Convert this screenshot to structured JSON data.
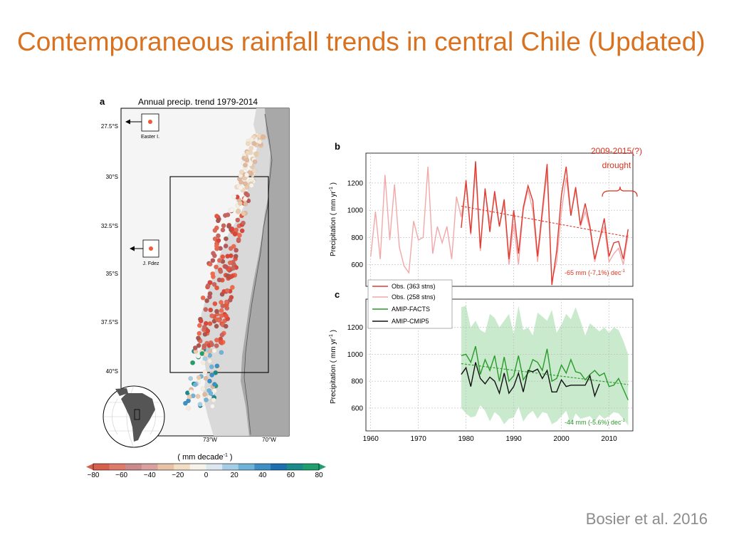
{
  "slide": {
    "title": "Contemporaneous rainfall trends in central Chile (Updated)",
    "credit": "Bosier et al. 2016"
  },
  "colors": {
    "title": "#d9711f",
    "obs363": "#e03a30",
    "obs258": "#f2a8a8",
    "facts": "#2a9a2a",
    "cmip5": "#111111",
    "spread": "#bfe6c4",
    "trend_b": "#e03a30",
    "trend_c": "#2a9a2a",
    "annot": "#d9331f",
    "land": "#d9d9d9",
    "andes": "#a8a8a8",
    "sea": "#f5f5f5"
  },
  "chart_data": [
    {
      "id": "a",
      "type": "scatter",
      "panel_letter": "a",
      "title": "Annual precip. trend 1979-2014",
      "ylabels": [
        "27.5°S",
        "30°S",
        "32.5°S",
        "35°S",
        "37.5°S",
        "40°S"
      ],
      "xlabels": [
        "73°W",
        "70°W"
      ],
      "insets": [
        "Easter I.",
        "J. Fdez"
      ],
      "colorbar": {
        "label": "( mm decade",
        "label_sup": "-1",
        "label_end": " )",
        "ticks": [
          "−80",
          "−60",
          "−40",
          "−20",
          "0",
          "20",
          "40",
          "60",
          "80"
        ],
        "range": [
          -80,
          80
        ],
        "colors": [
          "#d6604d",
          "#dd7a6a",
          "#c98a8a",
          "#d9a0a0",
          "#e8c2a4",
          "#f2dec6",
          "#f7f3ea",
          "#dce8f0",
          "#a7cde6",
          "#6fb3d8",
          "#3d8fc4",
          "#1e6fb0",
          "#1a8a8a",
          "#1f9e6e"
        ]
      }
    },
    {
      "id": "b",
      "type": "line",
      "panel_letter": "b",
      "ylabel": "Precipitation  ( mm yr",
      "ylabel_sup": "-1",
      "ylabel_end": " )",
      "yticks": [
        600,
        800,
        1000,
        1200
      ],
      "ylim": [
        440,
        1420
      ],
      "xlim": [
        1959,
        2015
      ],
      "annotation": [
        "2009-2015(?)",
        "drought"
      ],
      "trend_label": "-65 mm (-7,1%) dec",
      "trend_label_sup": "-1",
      "trend": {
        "x": [
          1979,
          2014
        ],
        "y": [
          1030,
          805
        ]
      },
      "series": [
        {
          "name": "Obs. (258 stns)",
          "x": [
            1960,
            1961,
            1962,
            1963,
            1964,
            1965,
            1966,
            1967,
            1968,
            1969,
            1970,
            1971,
            1972,
            1973,
            1974,
            1975,
            1976,
            1977,
            1978,
            1979,
            1980,
            1981,
            1982,
            1983,
            1984,
            1985,
            1986,
            1987,
            1988,
            1989,
            1990,
            1991,
            1992,
            1993,
            1994,
            1995,
            1996,
            1997,
            1998,
            1999,
            2000,
            2001,
            2002,
            2003,
            2004,
            2005,
            2006,
            2007,
            2008,
            2009,
            2010,
            2011,
            2012,
            2013,
            2014
          ],
          "y": [
            660,
            990,
            640,
            1260,
            780,
            1190,
            730,
            590,
            540,
            920,
            780,
            800,
            1320,
            680,
            880,
            760,
            880,
            640,
            1100,
            950,
            1180,
            820,
            1300,
            700,
            1150,
            900,
            1100,
            880,
            1050,
            600,
            900,
            600,
            1000,
            1150,
            1000,
            620,
            960,
            1280,
            480,
            620,
            990,
            1240,
            960,
            1150,
            880,
            990,
            860,
            620,
            780,
            880,
            620,
            680,
            720,
            600,
            820
          ]
        },
        {
          "name": "Obs. (363 stns)",
          "x": [
            1979,
            1980,
            1981,
            1982,
            1983,
            1984,
            1985,
            1986,
            1987,
            1988,
            1989,
            1990,
            1991,
            1992,
            1993,
            1994,
            1995,
            1996,
            1997,
            1998,
            1999,
            2000,
            2001,
            2002,
            2003,
            2004,
            2005,
            2006,
            2007,
            2008,
            2009,
            2010,
            2011,
            2012,
            2013,
            2014
          ],
          "y": [
            870,
            1220,
            830,
            1360,
            720,
            1160,
            840,
            1140,
            880,
            1080,
            640,
            1000,
            680,
            1020,
            1180,
            1070,
            660,
            1000,
            1340,
            450,
            700,
            1110,
            1320,
            960,
            1170,
            890,
            1050,
            880,
            640,
            780,
            940,
            660,
            760,
            770,
            640,
            860
          ]
        }
      ]
    },
    {
      "id": "c",
      "type": "line",
      "panel_letter": "c",
      "ylabel": "Precipitation  ( mm yr",
      "ylabel_sup": "-1",
      "ylabel_end": " )",
      "yticks": [
        600,
        800,
        1000,
        1200
      ],
      "xticks": [
        1960,
        1970,
        1980,
        1990,
        2000,
        2010
      ],
      "ylim": [
        430,
        1410
      ],
      "xlim": [
        1959,
        2015
      ],
      "trend_label": "-44 mm (-5.6%) dec",
      "trend_label_sup": "-1",
      "trend": {
        "x": [
          1979,
          2014
        ],
        "y": [
          930,
          775
        ]
      },
      "legend": {
        "placement": "upper-left"
      },
      "band": {
        "x": [
          1979,
          1980,
          1981,
          1982,
          1983,
          1984,
          1985,
          1986,
          1987,
          1988,
          1989,
          1990,
          1991,
          1992,
          1993,
          1994,
          1995,
          1996,
          1997,
          1998,
          1999,
          2000,
          2001,
          2002,
          2003,
          2004,
          2005,
          2006,
          2007,
          2008,
          2009,
          2010,
          2011,
          2012,
          2013,
          2014
        ],
        "upper": [
          1350,
          1360,
          1200,
          1250,
          1180,
          1160,
          1300,
          1270,
          1200,
          1250,
          1300,
          1150,
          1360,
          1180,
          1200,
          1140,
          1310,
          1280,
          1250,
          1330,
          1160,
          1220,
          1300,
          1260,
          1350,
          1250,
          1140,
          1230,
          1200,
          1170,
          1200,
          1160,
          1200,
          1180,
          1100,
          1000
        ],
        "lower": [
          600,
          560,
          530,
          540,
          620,
          580,
          500,
          570,
          540,
          480,
          520,
          530,
          610,
          500,
          550,
          580,
          520,
          570,
          560,
          480,
          500,
          540,
          580,
          480,
          560,
          520,
          530,
          540,
          500,
          550,
          520,
          540,
          570,
          560,
          520,
          470
        ]
      },
      "series": [
        {
          "name": "AMIP-FACTS",
          "x": [
            1979,
            1980,
            1981,
            1982,
            1983,
            1984,
            1985,
            1986,
            1987,
            1988,
            1989,
            1990,
            1991,
            1992,
            1993,
            1994,
            1995,
            1996,
            1997,
            1998,
            1999,
            2000,
            2001,
            2002,
            2003,
            2004,
            2005,
            2006,
            2007,
            2008,
            2009,
            2010,
            2011,
            2012,
            2013,
            2014
          ],
          "y": [
            990,
            1000,
            940,
            1060,
            850,
            960,
            880,
            990,
            800,
            980,
            800,
            840,
            990,
            810,
            860,
            960,
            940,
            880,
            1040,
            800,
            820,
            920,
            860,
            960,
            870,
            860,
            810,
            850,
            880,
            840,
            860,
            760,
            770,
            820,
            740,
            660
          ]
        },
        {
          "name": "AMIP-CMIP5",
          "x": [
            1979,
            1980,
            1981,
            1982,
            1983,
            1984,
            1985,
            1986,
            1987,
            1988,
            1989,
            1990,
            1991,
            1992,
            1993,
            1994,
            1995,
            1996,
            1997,
            1998,
            1999,
            2000,
            2001,
            2002,
            2003,
            2004,
            2005,
            2006,
            2007,
            2008
          ],
          "y": [
            850,
            900,
            760,
            940,
            820,
            780,
            830,
            800,
            710,
            860,
            710,
            760,
            860,
            720,
            880,
            870,
            890,
            820,
            880,
            720,
            720,
            810,
            760,
            770,
            770,
            770,
            770,
            840,
            690,
            780
          ]
        },
        {
          "name": "Obs. (363 stns)"
        },
        {
          "name": "Obs. (258 stns)"
        }
      ]
    }
  ]
}
